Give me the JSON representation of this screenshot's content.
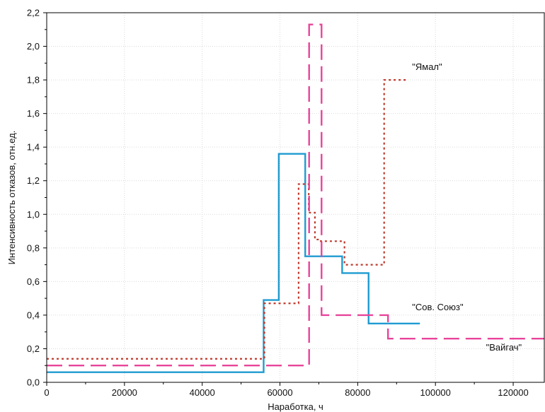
{
  "chart_data": {
    "type": "line",
    "title": "",
    "xlabel": "Наработка, ч",
    "ylabel": "Интенсивность отказов, отн.ед.",
    "xlim": [
      0,
      128000
    ],
    "ylim": [
      0,
      2.2
    ],
    "x_ticks": [
      0,
      20000,
      40000,
      60000,
      80000,
      100000,
      120000
    ],
    "x_tick_labels": [
      "0",
      "20000",
      "40000",
      "60000",
      "80000",
      "100000",
      "120000"
    ],
    "y_ticks": [
      0,
      0.2,
      0.4,
      0.6,
      0.8,
      1.0,
      1.2,
      1.4,
      1.6,
      1.8,
      2.0,
      2.2
    ],
    "y_tick_labels": [
      "0,0",
      "0,2",
      "0,4",
      "0,6",
      "0,8",
      "1,0",
      "1,2",
      "1,4",
      "1,6",
      "1,8",
      "2,0",
      "2,2"
    ],
    "grid": true,
    "step": true,
    "series": [
      {
        "name": "\"Сов. Союз\"",
        "color": "#1f9bd1",
        "dash": "solid",
        "x": [
          0,
          55800,
          59700,
          66500,
          76000,
          82800,
          96000
        ],
        "y": [
          0.06,
          0.49,
          1.36,
          0.75,
          0.65,
          0.35,
          0.35
        ]
      },
      {
        "name": "\"Ямал\"",
        "color": "#c0392b",
        "dash": "dotted",
        "x": [
          0,
          56000,
          64800,
          67400,
          69000,
          70500,
          76600,
          86800,
          93000
        ],
        "y": [
          0.14,
          0.47,
          1.18,
          1.01,
          0.85,
          0.84,
          0.7,
          1.8,
          1.8
        ]
      },
      {
        "name": "\"Вайгач\"",
        "color": "#e8449a",
        "dash": "dashed",
        "x": [
          0,
          67500,
          70700,
          87800,
          128000
        ],
        "y": [
          0.1,
          2.13,
          0.4,
          0.26,
          0.26
        ]
      }
    ],
    "annotations": [
      {
        "text": "\"Ямал\"",
        "x": 94000,
        "y": 1.86
      },
      {
        "text": "\"Сов. Союз\"",
        "x": 94000,
        "y": 0.43
      },
      {
        "text": "\"Вайгач\"",
        "x": 113000,
        "y": 0.19
      }
    ]
  }
}
